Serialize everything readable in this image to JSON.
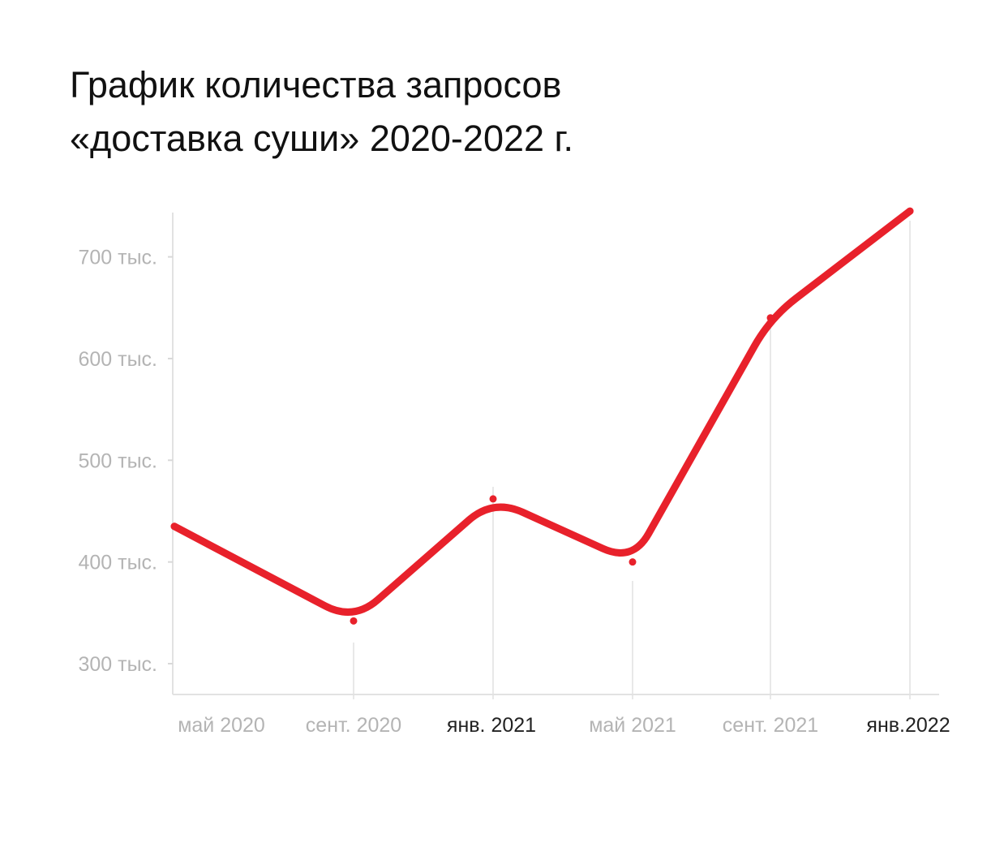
{
  "title_line1": "График количества запросов",
  "title_line2": "«доставка суши» 2020-2022 г.",
  "chart_data": {
    "type": "line",
    "title": "График количества запросов «доставка суши» 2020-2022 г.",
    "categories": [
      "май 2020",
      "сент. 2020",
      "янв. 2021",
      "май 2021",
      "сент. 2021",
      "янв.2022"
    ],
    "category_colors": [
      "#b4b4b4",
      "#b4b4b4",
      "#222222",
      "#b4b4b4",
      "#b4b4b4",
      "#222222"
    ],
    "x": [
      2020.25,
      2020.45,
      2020.6,
      2020.75,
      2020.92,
      2021.08,
      2021.25,
      2021.42,
      2021.58,
      2021.75,
      2021.92,
      2022.08
    ],
    "series": [
      {
        "color": "#e8212b",
        "points": [
          {
            "x": "май 2020",
            "y": 435
          },
          {
            "x": "сент. 2020",
            "y": 342
          },
          {
            "x": "янв. 2021",
            "y": 462
          },
          {
            "x": "май 2021",
            "y": 400
          },
          {
            "x": "сент. 2021",
            "y": 640
          },
          {
            "x": "янв.2022",
            "y": 745
          }
        ]
      }
    ],
    "yticks": [
      {
        "value": 300,
        "label": "300 тыс."
      },
      {
        "value": 400,
        "label": "400 тыс."
      },
      {
        "value": 500,
        "label": "500 тыс."
      },
      {
        "value": 600,
        "label": "600 тыс."
      },
      {
        "value": 700,
        "label": "700 тыс."
      }
    ],
    "ylim": [
      270,
      750
    ],
    "grid": "vertical",
    "legend": "none"
  }
}
